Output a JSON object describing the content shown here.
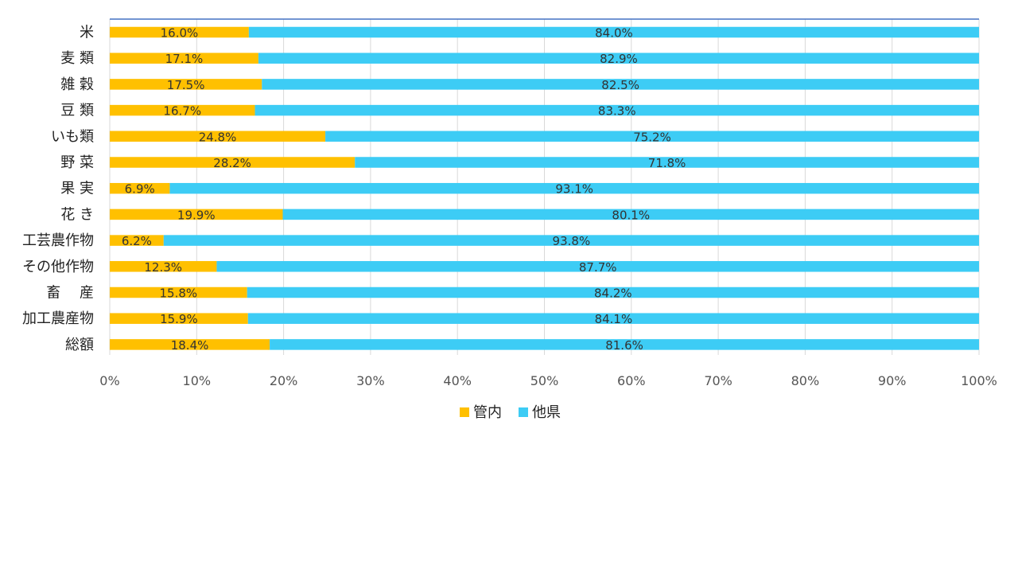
{
  "chart_data": {
    "type": "bar",
    "orientation": "horizontal",
    "stacked": "percent",
    "categories": [
      "米",
      "麦 類",
      "雑 穀",
      "豆 類",
      "いも類",
      "野 菜",
      "果 実",
      "花 き",
      "工芸農作物",
      "その他作物",
      "畜　 産",
      "加工農産物",
      "総額"
    ],
    "series": [
      {
        "name": "管内",
        "color": "#FFC000",
        "values": [
          16.0,
          17.1,
          17.5,
          16.7,
          24.8,
          28.2,
          6.9,
          19.9,
          6.2,
          12.3,
          15.8,
          15.9,
          18.4
        ],
        "labels": [
          "16.0%",
          "17.1%",
          "17.5%",
          "16.7%",
          "24.8%",
          "28.2%",
          "6.9%",
          "19.9%",
          "6.2%",
          "12.3%",
          "15.8%",
          "15.9%",
          "18.4%"
        ]
      },
      {
        "name": "他県",
        "color": "#3DCCF5",
        "values": [
          84.0,
          82.9,
          82.5,
          83.3,
          75.2,
          71.8,
          93.1,
          80.1,
          93.8,
          87.7,
          84.2,
          84.1,
          81.6
        ],
        "labels": [
          "84.0%",
          "82.9%",
          "82.5%",
          "83.3%",
          "75.2%",
          "71.8%",
          "93.1%",
          "80.1%",
          "93.8%",
          "87.7%",
          "84.2%",
          "84.1%",
          "81.6%"
        ]
      }
    ],
    "xlim": [
      0,
      100
    ],
    "ticks": [
      "0%",
      "10%",
      "20%",
      "30%",
      "40%",
      "50%",
      "60%",
      "70%",
      "80%",
      "90%",
      "100%"
    ],
    "grid": true,
    "legend_position": "bottom"
  }
}
